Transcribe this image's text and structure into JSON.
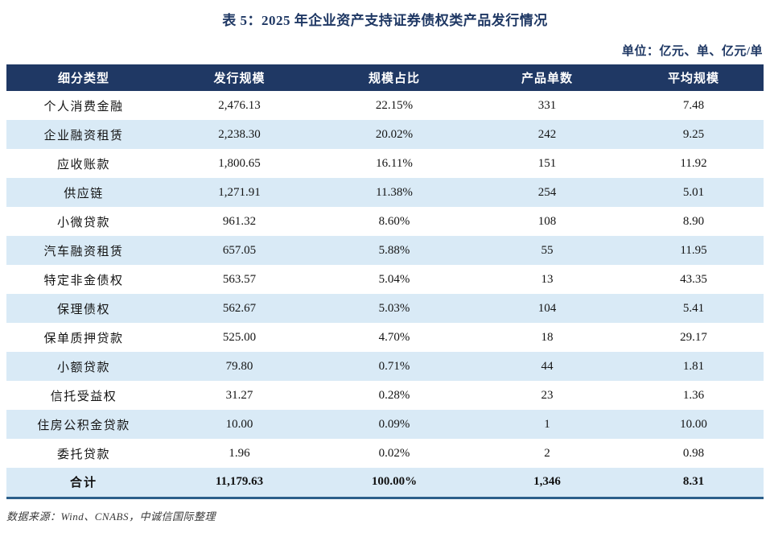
{
  "title": "表 5：2025 年企业资产支持证券债权类产品发行情况",
  "unit_label": "单位：亿元、单、亿元/单",
  "colors": {
    "header_bg": "#1F3864",
    "stripe_bg": "#D9EAF6",
    "accent_text": "#1F3864",
    "bottom_border": "#2C5F8A"
  },
  "table": {
    "columns": [
      "细分类型",
      "发行规模",
      "规模占比",
      "产品单数",
      "平均规模"
    ],
    "rows": [
      [
        "个人消费金融",
        "2,476.13",
        "22.15%",
        "331",
        "7.48"
      ],
      [
        "企业融资租赁",
        "2,238.30",
        "20.02%",
        "242",
        "9.25"
      ],
      [
        "应收账款",
        "1,800.65",
        "16.11%",
        "151",
        "11.92"
      ],
      [
        "供应链",
        "1,271.91",
        "11.38%",
        "254",
        "5.01"
      ],
      [
        "小微贷款",
        "961.32",
        "8.60%",
        "108",
        "8.90"
      ],
      [
        "汽车融资租赁",
        "657.05",
        "5.88%",
        "55",
        "11.95"
      ],
      [
        "特定非金债权",
        "563.57",
        "5.04%",
        "13",
        "43.35"
      ],
      [
        "保理债权",
        "562.67",
        "5.03%",
        "104",
        "5.41"
      ],
      [
        "保单质押贷款",
        "525.00",
        "4.70%",
        "18",
        "29.17"
      ],
      [
        "小额贷款",
        "79.80",
        "0.71%",
        "44",
        "1.81"
      ],
      [
        "信托受益权",
        "31.27",
        "0.28%",
        "23",
        "1.36"
      ],
      [
        "住房公积金贷款",
        "10.00",
        "0.09%",
        "1",
        "10.00"
      ],
      [
        "委托贷款",
        "1.96",
        "0.02%",
        "2",
        "0.98"
      ]
    ],
    "total_row": [
      "合计",
      "11,179.63",
      "100.00%",
      "1,346",
      "8.31"
    ]
  },
  "footer": "数据来源：Wind、CNABS，中诚信国际整理"
}
